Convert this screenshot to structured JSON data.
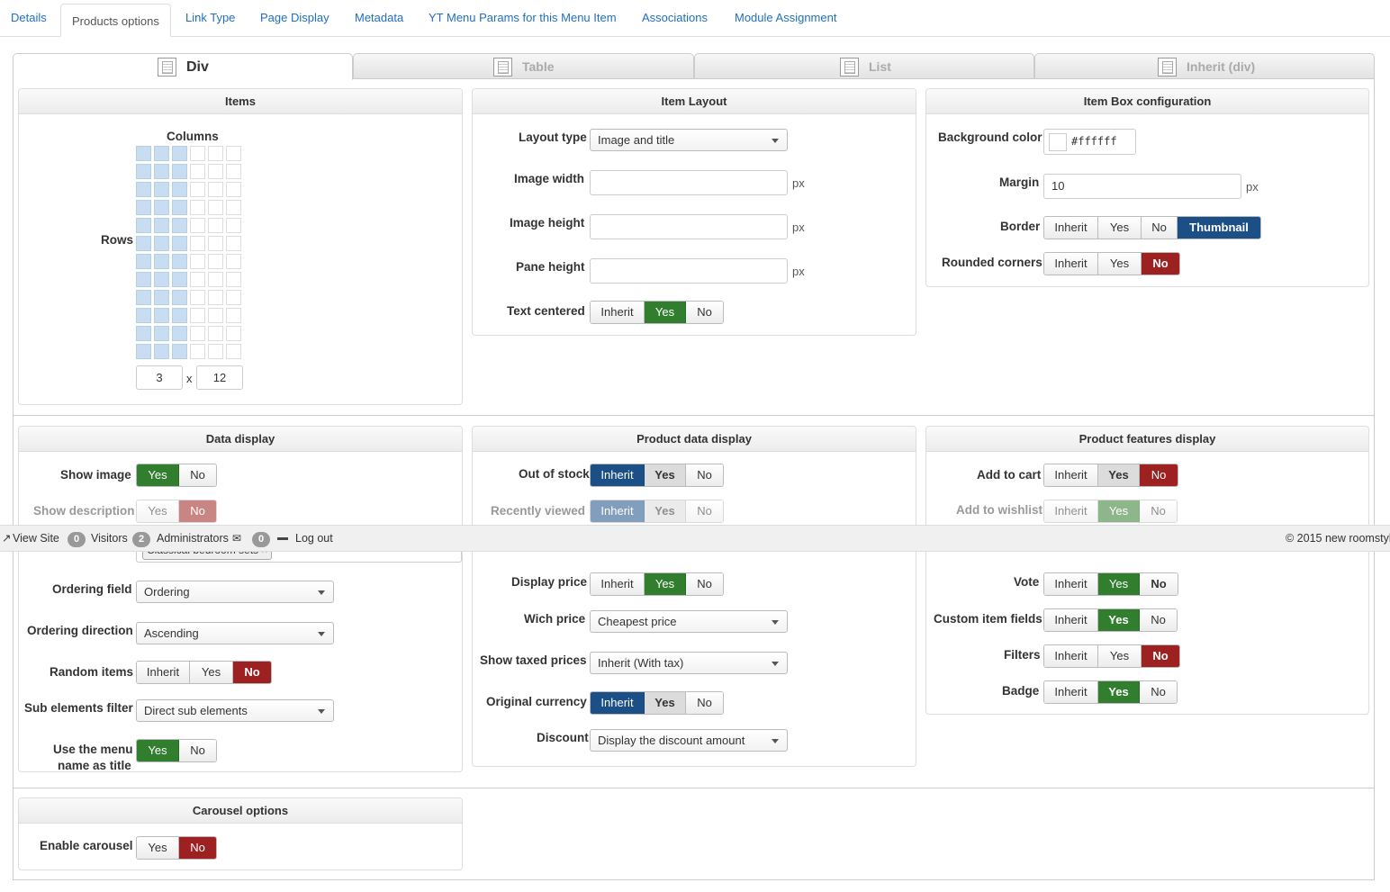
{
  "top_tabs": [
    "Details",
    "Products options",
    "Link Type",
    "Page Display",
    "Metadata",
    "YT Menu Params for this Menu Item",
    "Associations",
    "Module Assignment"
  ],
  "layout_tabs": [
    "Div",
    "Table",
    "List",
    "Inherit (div)"
  ],
  "items": {
    "title": "Items",
    "columns_label": "Columns",
    "rows_label": "Rows",
    "columns": "3",
    "x": "x",
    "rows": "12",
    "selected_columns": 3,
    "selected_rows": 12
  },
  "item_layout": {
    "title": "Item Layout",
    "layout_type_label": "Layout type",
    "layout_type": "Image and title",
    "image_width_label": "Image width",
    "image_height_label": "Image height",
    "pane_height_label": "Pane height",
    "unit": "px",
    "text_centered_label": "Text centered",
    "text_centered": [
      "Inherit",
      "Yes",
      "No"
    ]
  },
  "item_box": {
    "title": "Item Box configuration",
    "bg_label": "Background color",
    "bg_value": "#ffffff",
    "margin_label": "Margin",
    "margin_value": "10",
    "unit": "px",
    "border_label": "Border",
    "border_opts": [
      "Inherit",
      "Yes",
      "No",
      "Thumbnail"
    ],
    "rounded_label": "Rounded corners",
    "rounded_opts": [
      "Inherit",
      "Yes",
      "No"
    ]
  },
  "data_display": {
    "title": "Data display",
    "show_image_label": "Show image",
    "show_image": [
      "Yes",
      "No"
    ],
    "show_desc_label": "Show description",
    "show_desc": [
      "Yes",
      "No"
    ],
    "category_value": "Classical bedroom sets",
    "ordering_field_label": "Ordering field",
    "ordering_field": "Ordering",
    "ordering_dir_label": "Ordering direction",
    "ordering_dir": "Ascending",
    "random_label": "Random items",
    "random": [
      "Inherit",
      "Yes",
      "No"
    ],
    "sub_filter_label": "Sub elements filter",
    "sub_filter": "Direct sub elements",
    "menu_name_label_1": "Use the menu",
    "menu_name_label_2": "name as title",
    "menu_name": [
      "Yes",
      "No"
    ]
  },
  "product_data": {
    "title": "Product data display",
    "out_of_stock_label": "Out of stock",
    "out_of_stock": [
      "Inherit",
      "Yes",
      "No"
    ],
    "recently_label": "Recently viewed",
    "recently": [
      "Inherit",
      "Yes",
      "No"
    ],
    "display_price_label": "Display price",
    "display_price": [
      "Inherit",
      "Yes",
      "No"
    ],
    "which_price_label": "Wich price",
    "which_price": "Cheapest price",
    "taxed_label": "Show taxed prices",
    "taxed": "Inherit (With tax)",
    "currency_label": "Original currency",
    "currency": [
      "Inherit",
      "Yes",
      "No"
    ],
    "discount_label": "Discount",
    "discount": "Display the discount amount"
  },
  "features": {
    "title": "Product features display",
    "cart_label": "Add to cart",
    "cart": [
      "Inherit",
      "Yes",
      "No"
    ],
    "wishlist_label": "Add to wishlist",
    "wishlist": [
      "Inherit",
      "Yes",
      "No"
    ],
    "vote_label": "Vote",
    "vote": [
      "Inherit",
      "Yes",
      "No"
    ],
    "custom_label": "Custom item fields",
    "custom": [
      "Inherit",
      "Yes",
      "No"
    ],
    "filters_label": "Filters",
    "filters": [
      "Inherit",
      "Yes",
      "No"
    ],
    "badge_label": "Badge",
    "badge": [
      "Inherit",
      "Yes",
      "No"
    ]
  },
  "carousel": {
    "title": "Carousel options",
    "enable_label": "Enable carousel",
    "enable": [
      "Yes",
      "No"
    ]
  },
  "statusbar": {
    "view_site": "View Site",
    "visitors_count": "0",
    "visitors": "Visitors",
    "admins_count": "2",
    "admins": "Administrators",
    "messages_count": "0",
    "logout": "Log out",
    "copyright": "© 2015 new roomstyl"
  }
}
